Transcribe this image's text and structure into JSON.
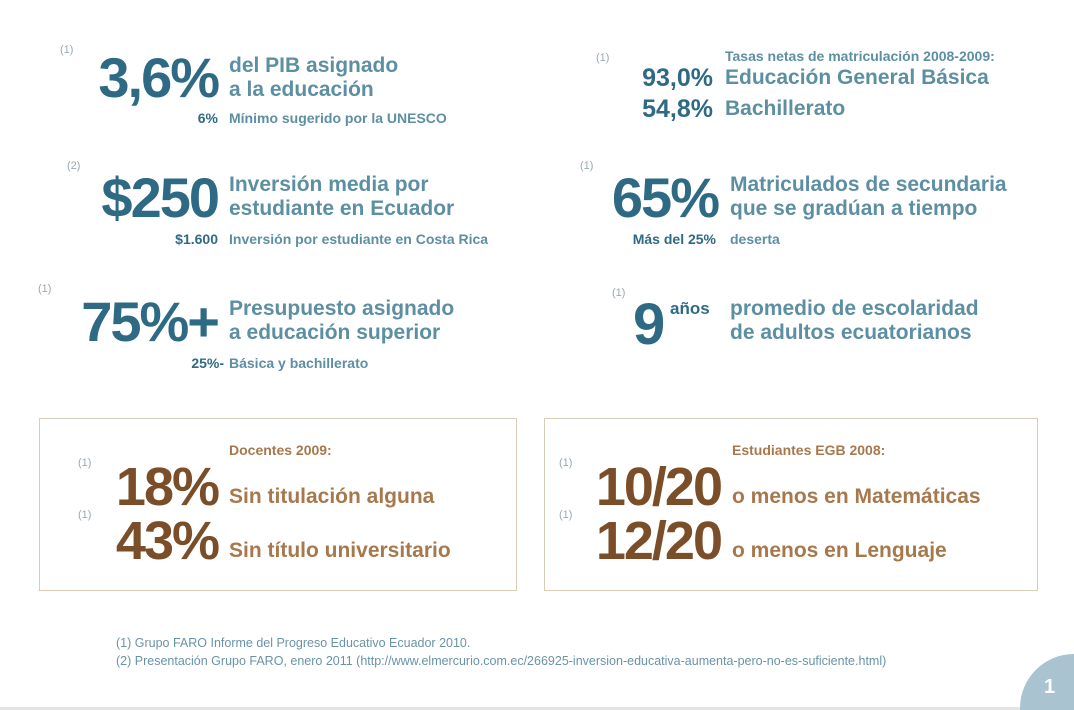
{
  "left": [
    {
      "ref": "(1)",
      "value": "3,6%",
      "desc": [
        "del PIB asignado",
        "a la educación"
      ],
      "sub_value": "6%",
      "sub_text": "Mínimo sugerido por la UNESCO"
    },
    {
      "ref": "(2)",
      "value": "$250",
      "desc": [
        "Inversión media por",
        "estudiante en Ecuador"
      ],
      "sub_value": "$1.600",
      "sub_text": "Inversión por estudiante en Costa Rica"
    },
    {
      "ref": "(1)",
      "value": "75%+",
      "desc": [
        "Presupuesto asignado",
        "a educación superior"
      ],
      "sub_value": "25%-",
      "sub_text": "Básica y bachillerato"
    }
  ],
  "right": {
    "enrollment": {
      "ref": "(1)",
      "heading": "Tasas netas de matriculación 2008-2009:",
      "rows": [
        {
          "value": "93,0%",
          "label": "Educación General Básica"
        },
        {
          "value": "54,8%",
          "label": "Bachillerato"
        }
      ]
    },
    "graduation": {
      "ref": "(1)",
      "value": "65%",
      "desc": [
        "Matriculados de secundaria",
        "que se gradúan a tiempo"
      ],
      "sub_value": "Más del 25%",
      "sub_text": "deserta"
    },
    "schooling": {
      "ref": "(1)",
      "value": "9",
      "unit": "años",
      "desc": [
        "promedio de escolaridad",
        "de adultos ecuatorianos"
      ]
    }
  },
  "boxes": [
    {
      "heading": "Docentes 2009:",
      "rows": [
        {
          "ref": "(1)",
          "value": "18%",
          "label": "Sin titulación alguna"
        },
        {
          "ref": "(1)",
          "value": "43%",
          "label": "Sin título universitario"
        }
      ]
    },
    {
      "heading": "Estudiantes EGB 2008:",
      "rows": [
        {
          "ref": "(1)",
          "value": "10/20",
          "label": "o menos en Matemáticas"
        },
        {
          "ref": "(1)",
          "value": "12/20",
          "label": "o menos en Lenguaje"
        }
      ]
    }
  ],
  "footnotes": [
    "(1) Grupo FARO Informe del Progreso Educativo Ecuador 2010.",
    "(2) Presentación Grupo FARO, enero 2011 (http://www.elmercurio.com.ec/266925-inversion-educativa-aumenta-pero-no-es-suficiente.html)"
  ],
  "page_number": "1",
  "colors": {
    "teal_dark": "#2f6a84",
    "teal_light": "#5d8fa3",
    "brown_dark": "#7a4e28",
    "brown_light": "#a8784d",
    "page_circle": "#a9c3d1"
  }
}
